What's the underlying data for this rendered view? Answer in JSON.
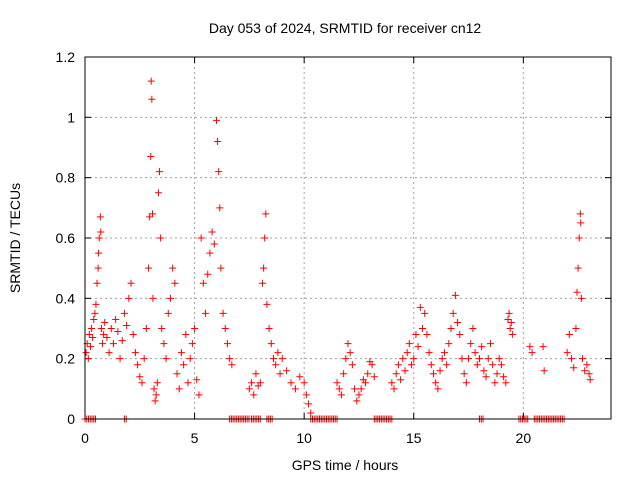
{
  "chart_data": {
    "type": "scatter",
    "title": "Day 053 of 2024, SRMTID for receiver cn12",
    "xlabel": "GPS time / hours",
    "ylabel": "SRMTID / TECUs",
    "xlim": [
      0,
      24
    ],
    "ylim": [
      0,
      1.2
    ],
    "grid": true,
    "x_ticks": [
      0,
      5,
      10,
      15,
      20
    ],
    "x_tick_labels": [
      "0",
      "5",
      "10",
      "15",
      "20"
    ],
    "y_ticks": [
      0,
      0.2,
      0.4,
      0.6,
      0.8,
      1.0,
      1.2
    ],
    "y_tick_labels": [
      "0",
      "0.2",
      "0.4",
      "0.6",
      "0.8",
      "1",
      "1.2"
    ],
    "marker": "+",
    "color": "#ff0000",
    "series": [
      {
        "name": "SRMTID",
        "points": [
          [
            0.05,
            0.22
          ],
          [
            0.1,
            0.25
          ],
          [
            0.15,
            0.2
          ],
          [
            0.2,
            0.28
          ],
          [
            0.25,
            0.24
          ],
          [
            0.3,
            0.3
          ],
          [
            0.35,
            0.27
          ],
          [
            0.4,
            0.33
          ],
          [
            0.45,
            0.35
          ],
          [
            0.5,
            0.38
          ],
          [
            0.55,
            0.45
          ],
          [
            0.6,
            0.5
          ],
          [
            0.62,
            0.55
          ],
          [
            0.65,
            0.6
          ],
          [
            0.7,
            0.67
          ],
          [
            0.72,
            0.62
          ],
          [
            0.75,
            0.3
          ],
          [
            0.8,
            0.25
          ],
          [
            0.85,
            0.28
          ],
          [
            0.9,
            0.32
          ],
          [
            1.0,
            0.27
          ],
          [
            1.1,
            0.22
          ],
          [
            1.2,
            0.3
          ],
          [
            1.3,
            0.25
          ],
          [
            1.4,
            0.33
          ],
          [
            1.5,
            0.29
          ],
          [
            1.6,
            0.2
          ],
          [
            1.7,
            0.26
          ],
          [
            1.8,
            0.35
          ],
          [
            1.9,
            0.31
          ],
          [
            2.0,
            0.4
          ],
          [
            2.1,
            0.45
          ],
          [
            2.2,
            0.28
          ],
          [
            2.3,
            0.22
          ],
          [
            2.4,
            0.18
          ],
          [
            2.5,
            0.14
          ],
          [
            2.6,
            0.12
          ],
          [
            2.7,
            0.2
          ],
          [
            2.8,
            0.3
          ],
          [
            2.9,
            0.5
          ],
          [
            2.95,
            0.67
          ],
          [
            3.0,
            0.87
          ],
          [
            3.02,
            1.12
          ],
          [
            3.05,
            1.06
          ],
          [
            3.08,
            0.68
          ],
          [
            3.1,
            0.4
          ],
          [
            3.15,
            0.1
          ],
          [
            3.2,
            0.06
          ],
          [
            3.25,
            0.08
          ],
          [
            3.3,
            0.12
          ],
          [
            3.35,
            0.75
          ],
          [
            3.4,
            0.82
          ],
          [
            3.45,
            0.6
          ],
          [
            3.5,
            0.3
          ],
          [
            3.6,
            0.25
          ],
          [
            3.7,
            0.2
          ],
          [
            3.8,
            0.35
          ],
          [
            3.9,
            0.4
          ],
          [
            4.0,
            0.5
          ],
          [
            4.1,
            0.45
          ],
          [
            4.2,
            0.15
          ],
          [
            4.3,
            0.1
          ],
          [
            4.4,
            0.22
          ],
          [
            4.5,
            0.18
          ],
          [
            4.6,
            0.28
          ],
          [
            4.7,
            0.12
          ],
          [
            4.8,
            0.2
          ],
          [
            4.9,
            0.25
          ],
          [
            5.0,
            0.3
          ],
          [
            5.1,
            0.13
          ],
          [
            5.2,
            0.08
          ],
          [
            5.3,
            0.6
          ],
          [
            5.4,
            0.45
          ],
          [
            5.5,
            0.35
          ],
          [
            5.6,
            0.48
          ],
          [
            5.7,
            0.55
          ],
          [
            5.8,
            0.62
          ],
          [
            5.9,
            0.58
          ],
          [
            6.0,
            0.99
          ],
          [
            6.05,
            0.92
          ],
          [
            6.1,
            0.82
          ],
          [
            6.15,
            0.7
          ],
          [
            6.2,
            0.5
          ],
          [
            6.3,
            0.35
          ],
          [
            6.4,
            0.3
          ],
          [
            6.5,
            0.25
          ],
          [
            6.6,
            0.2
          ],
          [
            6.7,
            0.18
          ],
          [
            7.5,
            0.1
          ],
          [
            7.6,
            0.12
          ],
          [
            7.7,
            0.08
          ],
          [
            7.8,
            0.15
          ],
          [
            7.9,
            0.11
          ],
          [
            8.0,
            0.12
          ],
          [
            8.1,
            0.45
          ],
          [
            8.15,
            0.5
          ],
          [
            8.2,
            0.6
          ],
          [
            8.25,
            0.68
          ],
          [
            8.3,
            0.38
          ],
          [
            8.4,
            0.3
          ],
          [
            8.5,
            0.25
          ],
          [
            8.6,
            0.2
          ],
          [
            8.7,
            0.18
          ],
          [
            8.8,
            0.22
          ],
          [
            8.9,
            0.15
          ],
          [
            9.0,
            0.2
          ],
          [
            9.2,
            0.16
          ],
          [
            9.4,
            0.12
          ],
          [
            9.6,
            0.1
          ],
          [
            9.8,
            0.14
          ],
          [
            10.0,
            0.12
          ],
          [
            10.1,
            0.08
          ],
          [
            10.2,
            0.05
          ],
          [
            10.3,
            0.02
          ],
          [
            11.5,
            0.12
          ],
          [
            11.6,
            0.1
          ],
          [
            11.7,
            0.08
          ],
          [
            11.8,
            0.15
          ],
          [
            11.9,
            0.2
          ],
          [
            12.0,
            0.25
          ],
          [
            12.1,
            0.22
          ],
          [
            12.2,
            0.18
          ],
          [
            12.3,
            0.1
          ],
          [
            12.4,
            0.06
          ],
          [
            12.5,
            0.08
          ],
          [
            12.6,
            0.1
          ],
          [
            12.7,
            0.13
          ],
          [
            12.8,
            0.12
          ],
          [
            12.9,
            0.15
          ],
          [
            13.0,
            0.19
          ],
          [
            13.1,
            0.18
          ],
          [
            13.2,
            0.14
          ],
          [
            14.0,
            0.12
          ],
          [
            14.1,
            0.1
          ],
          [
            14.2,
            0.15
          ],
          [
            14.3,
            0.18
          ],
          [
            14.4,
            0.13
          ],
          [
            14.5,
            0.2
          ],
          [
            14.6,
            0.16
          ],
          [
            14.7,
            0.22
          ],
          [
            14.8,
            0.25
          ],
          [
            14.9,
            0.18
          ],
          [
            15.0,
            0.2
          ],
          [
            15.1,
            0.28
          ],
          [
            15.2,
            0.24
          ],
          [
            15.3,
            0.37
          ],
          [
            15.4,
            0.3
          ],
          [
            15.5,
            0.35
          ],
          [
            15.6,
            0.28
          ],
          [
            15.7,
            0.22
          ],
          [
            15.8,
            0.18
          ],
          [
            15.9,
            0.15
          ],
          [
            16.0,
            0.12
          ],
          [
            16.1,
            0.1
          ],
          [
            16.2,
            0.16
          ],
          [
            16.3,
            0.2
          ],
          [
            16.4,
            0.22
          ],
          [
            16.5,
            0.18
          ],
          [
            16.6,
            0.25
          ],
          [
            16.7,
            0.3
          ],
          [
            16.8,
            0.35
          ],
          [
            16.9,
            0.41
          ],
          [
            17.0,
            0.32
          ],
          [
            17.1,
            0.28
          ],
          [
            17.2,
            0.2
          ],
          [
            17.3,
            0.15
          ],
          [
            17.4,
            0.12
          ],
          [
            17.5,
            0.2
          ],
          [
            17.6,
            0.25
          ],
          [
            17.7,
            0.3
          ],
          [
            17.8,
            0.22
          ],
          [
            17.9,
            0.18
          ],
          [
            18.0,
            0.2
          ],
          [
            18.1,
            0.24
          ],
          [
            18.2,
            0.16
          ],
          [
            18.3,
            0.14
          ],
          [
            18.4,
            0.2
          ],
          [
            18.5,
            0.25
          ],
          [
            18.6,
            0.18
          ],
          [
            18.7,
            0.12
          ],
          [
            18.8,
            0.15
          ],
          [
            18.9,
            0.2
          ],
          [
            19.0,
            0.18
          ],
          [
            19.1,
            0.14
          ],
          [
            19.2,
            0.12
          ],
          [
            19.3,
            0.33
          ],
          [
            19.35,
            0.35
          ],
          [
            19.4,
            0.3
          ],
          [
            19.45,
            0.32
          ],
          [
            19.5,
            0.28
          ],
          [
            20.3,
            0.24
          ],
          [
            20.4,
            0.22
          ],
          [
            20.9,
            0.24
          ],
          [
            20.95,
            0.16
          ],
          [
            22.0,
            0.22
          ],
          [
            22.1,
            0.28
          ],
          [
            22.2,
            0.2
          ],
          [
            22.3,
            0.17
          ],
          [
            22.4,
            0.3
          ],
          [
            22.45,
            0.42
          ],
          [
            22.5,
            0.5
          ],
          [
            22.55,
            0.6
          ],
          [
            22.6,
            0.68
          ],
          [
            22.62,
            0.65
          ],
          [
            22.65,
            0.4
          ],
          [
            22.7,
            0.2
          ],
          [
            22.8,
            0.16
          ],
          [
            22.9,
            0.18
          ],
          [
            23.0,
            0.15
          ],
          [
            23.05,
            0.13
          ]
        ]
      }
    ],
    "zero_segments": [
      [
        0.0,
        0.5
      ],
      [
        1.8,
        1.9
      ],
      [
        6.6,
        7.5
      ],
      [
        7.6,
        8.0
      ],
      [
        8.3,
        8.6
      ],
      [
        10.3,
        11.5
      ],
      [
        13.2,
        14.0
      ],
      [
        18.0,
        18.2
      ],
      [
        19.8,
        20.2
      ],
      [
        20.5,
        21.9
      ]
    ]
  }
}
